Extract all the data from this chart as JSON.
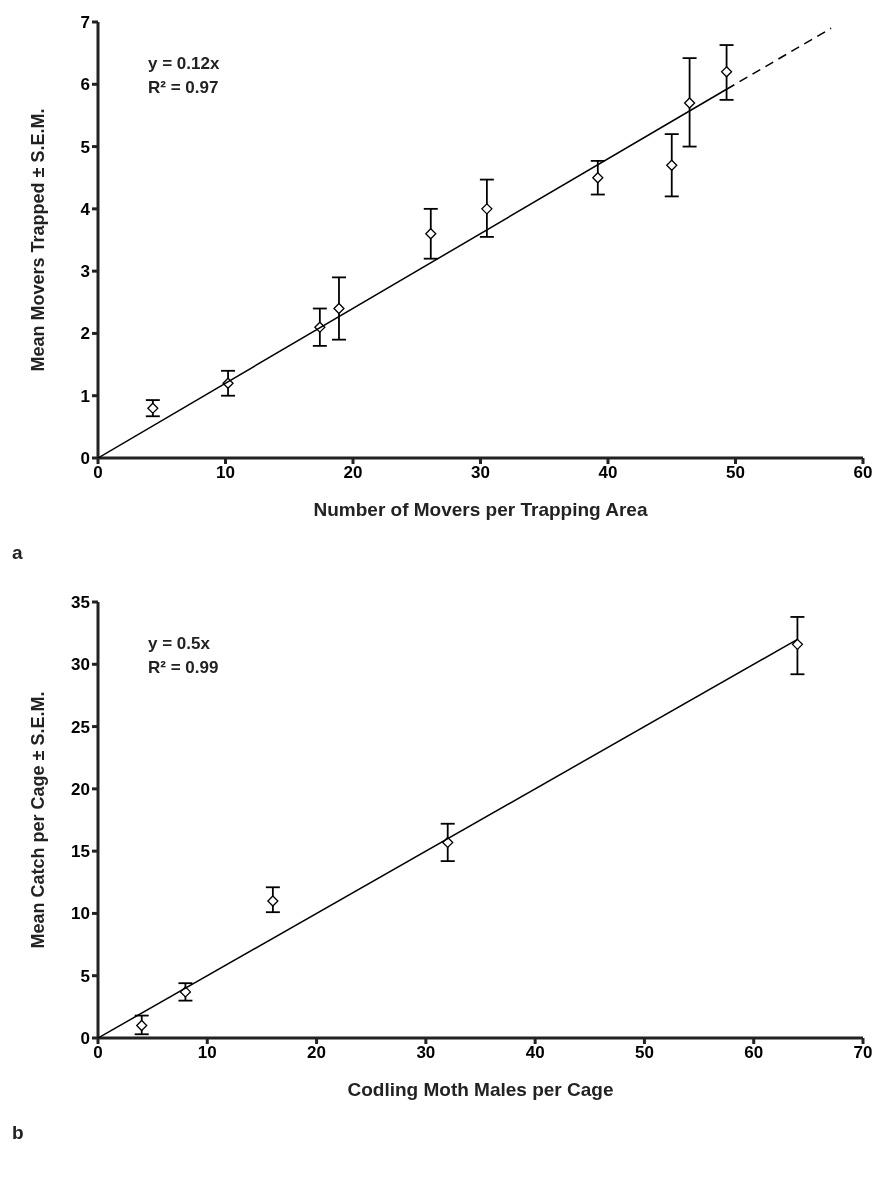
{
  "chart_data": [
    {
      "type": "scatter",
      "xlabel": "Number of Movers per Trapping Area",
      "ylabel": "Mean Movers Trapped ± S.E.M.",
      "xlim": [
        0,
        60
      ],
      "ylim": [
        0,
        7
      ],
      "xticks": [
        0,
        10,
        20,
        30,
        40,
        50,
        60
      ],
      "yticks": [
        0,
        1,
        2,
        3,
        4,
        5,
        6,
        7
      ],
      "annotations": [
        "y = 0.12x",
        "R² = 0.97",
        "a"
      ],
      "series": [
        {
          "marker": "diamond",
          "color": "#000000",
          "x": [
            4.3,
            10.2,
            17.4,
            18.9,
            26.1,
            30.5,
            39.2,
            45,
            46.4,
            49.3
          ],
          "values": [
            0.8,
            1.2,
            2.1,
            2.4,
            3.6,
            4.0,
            4.5,
            4.7,
            5.7,
            6.2
          ],
          "errors": [
            [
              0.67,
              0.93
            ],
            [
              1.0,
              1.4
            ],
            [
              1.8,
              2.4
            ],
            [
              1.9,
              2.9
            ],
            [
              3.2,
              4.0
            ],
            [
              3.55,
              4.47
            ],
            [
              4.23,
              4.77
            ],
            [
              4.2,
              5.2
            ],
            [
              5.0,
              6.42
            ],
            [
              5.75,
              6.63
            ]
          ]
        },
        {
          "type": "line",
          "marker": "none",
          "color": "#000000",
          "line_style": "solid",
          "x": [
            0,
            49.3
          ],
          "values": [
            0,
            5.92
          ]
        },
        {
          "type": "line",
          "marker": "none",
          "color": "#000000",
          "line_style": "dashed",
          "x": [
            49.3,
            57.5
          ],
          "values": [
            5.92,
            6.9
          ]
        }
      ]
    },
    {
      "type": "scatter",
      "xlabel": "Codling Moth Males per Cage",
      "ylabel": "Mean Catch per Cage ± S.E.M.",
      "xlim": [
        0,
        70
      ],
      "ylim": [
        0,
        35
      ],
      "xticks": [
        0,
        10,
        20,
        30,
        40,
        50,
        60,
        70
      ],
      "yticks": [
        0,
        5,
        10,
        15,
        20,
        25,
        30,
        35
      ],
      "annotations": [
        "y = 0.5x",
        "R² = 0.99",
        "b"
      ],
      "series": [
        {
          "marker": "diamond",
          "color": "#000000",
          "x": [
            4,
            8,
            16,
            32,
            64
          ],
          "values": [
            1,
            3.7,
            11,
            15.7,
            31.6
          ],
          "errors": [
            [
              0.3,
              1.8
            ],
            [
              3.0,
              4.4
            ],
            [
              10.1,
              12.1
            ],
            [
              14.2,
              17.2
            ],
            [
              29.2,
              33.8
            ]
          ]
        },
        {
          "type": "line",
          "marker": "none",
          "color": "#000000",
          "line_style": "solid",
          "x": [
            0,
            64
          ],
          "values": [
            0,
            32
          ]
        }
      ]
    }
  ]
}
